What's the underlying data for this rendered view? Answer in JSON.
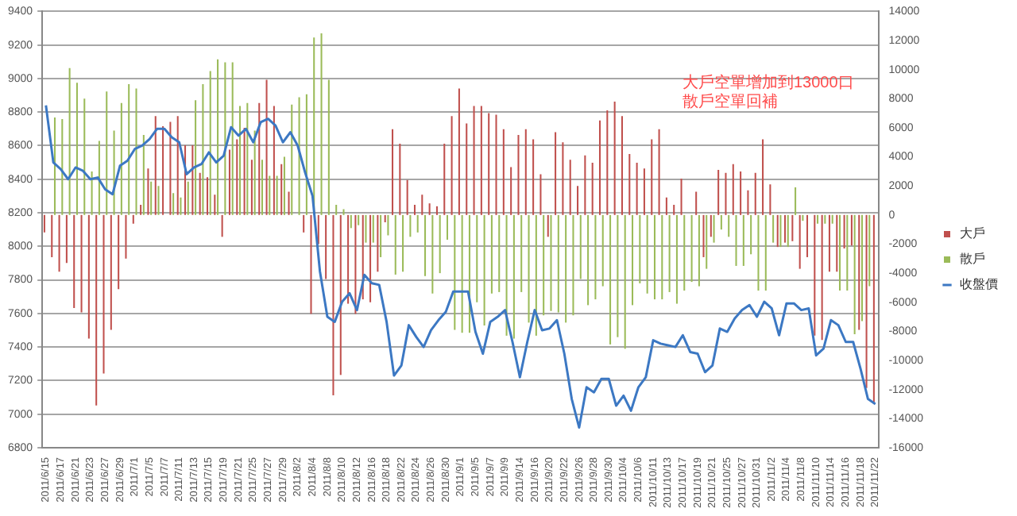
{
  "chart_data": {
    "type": "bar",
    "categories": [
      "2011/6/15",
      null,
      "2011/6/17",
      null,
      "2011/6/21",
      null,
      "2011/6/23",
      null,
      "2011/6/27",
      null,
      "2011/6/29",
      null,
      "2011/7/1",
      null,
      "2011/7/5",
      null,
      "2011/7/7",
      null,
      "2011/7/11",
      null,
      "2011/7/13",
      null,
      "2011/7/15",
      null,
      "2011/7/19",
      null,
      "2011/7/21",
      null,
      "2011/7/25",
      null,
      "2011/7/27",
      null,
      "2011/7/29",
      null,
      "2011/8/2",
      null,
      "2011/8/4",
      null,
      "2011/8/8",
      null,
      "2011/8/10",
      null,
      "2011/8/12",
      null,
      "2011/8/16",
      null,
      "2011/8/18",
      null,
      "2011/8/22",
      null,
      "2011/8/24",
      null,
      "2011/8/26",
      null,
      "2011/8/30",
      null,
      "2011/9/1",
      null,
      "2011/9/5",
      null,
      "2011/9/7",
      null,
      "2011/9/9",
      null,
      "2011/9/14",
      null,
      "2011/9/16",
      null,
      "2011/9/20",
      null,
      "2011/9/22",
      null,
      "2011/9/26",
      null,
      "2011/9/28",
      null,
      "2011/9/30",
      null,
      "2011/10/4",
      null,
      "2011/10/6",
      null,
      "2011/10/11",
      null,
      "2011/10/13",
      null,
      "2011/10/17",
      null,
      "2011/10/19",
      null,
      "2011/10/21",
      null,
      "2011/10/25",
      null,
      "2011/10/27",
      null,
      "2011/10/31",
      null,
      "2011/11/2",
      null,
      "2011/11/4",
      null,
      "2011/11/8",
      null,
      "2011/11/10",
      null,
      "2011/11/14",
      null,
      "2011/11/16",
      null,
      "2011/11/18",
      null,
      "2011/11/22"
    ],
    "series": [
      {
        "name": "大戶",
        "axis": "y2",
        "color": "#c0504d",
        "values": [
          -1200,
          -2900,
          -3900,
          -3300,
          -6400,
          -6700,
          -8500,
          -13100,
          -10900,
          -7900,
          -5100,
          -3000,
          -600,
          700,
          3200,
          6800,
          6100,
          6400,
          6800,
          4800,
          4800,
          2900,
          2600,
          1400,
          -1500,
          4500,
          5200,
          6000,
          3800,
          7700,
          9300,
          7500,
          3500,
          1600,
          0,
          -1200,
          -6800,
          -2000,
          -4400,
          -12400,
          -11000,
          -6100,
          -6800,
          -5800,
          -6000,
          -3900,
          -500,
          5900,
          4900,
          2400,
          700,
          1400,
          800,
          600,
          4900,
          6800,
          8700,
          6300,
          7500,
          7500,
          7000,
          6900,
          5900,
          3300,
          5500,
          5900,
          5200,
          2800,
          -1500,
          5700,
          5000,
          3800,
          2000,
          4100,
          3600,
          6500,
          7200,
          7800,
          6800,
          4200,
          3600,
          3200,
          5200,
          5900,
          1200,
          700,
          2500,
          null,
          1600,
          -2900,
          -1500,
          3100,
          2900,
          3500,
          3000,
          1700,
          2900,
          5200,
          2100,
          -2200,
          -1900,
          -1800,
          -3700,
          -2900,
          -8300,
          -8600,
          -3900,
          -3900,
          -2300,
          -2100,
          -7900,
          -11900,
          -13000
        ]
      },
      {
        "name": "散戶",
        "axis": "y2",
        "color": "#9bbb59",
        "values": [
          null,
          6700,
          6600,
          10100,
          9100,
          8000,
          3000,
          5100,
          8500,
          5800,
          7700,
          9000,
          8700,
          5500,
          2300,
          2000,
          null,
          1500,
          1200,
          2300,
          7900,
          9000,
          9900,
          10700,
          10500,
          10500,
          7500,
          7700,
          5800,
          3800,
          2700,
          2700,
          4000,
          7600,
          8100,
          8300,
          12200,
          12500,
          9300,
          700,
          400,
          -900,
          -700,
          -1900,
          -1900,
          -2900,
          -1400,
          -4100,
          -3900,
          -1500,
          -1200,
          -4200,
          -5400,
          -4000,
          -1700,
          -7900,
          -8100,
          -8100,
          -6000,
          -7600,
          -5400,
          -5300,
          -8300,
          -8500,
          -5300,
          -7400,
          -8300,
          -6900,
          -6600,
          -6700,
          -7400,
          -6900,
          -4400,
          -6200,
          -5800,
          -4900,
          -8900,
          -8400,
          -9200,
          -6200,
          -4700,
          -5400,
          -5800,
          -5800,
          -5300,
          -6100,
          -5200,
          -4600,
          -4900,
          -3700,
          -1900,
          -1000,
          -1500,
          -3500,
          -3500,
          -2700,
          -5200,
          -5200,
          -1900,
          -2200,
          -2200,
          1900,
          -400,
          null,
          -600,
          -600,
          -600,
          -5200,
          -5200,
          -8200,
          -7300,
          -4900,
          null
        ]
      },
      {
        "name": "收盤價",
        "type": "line",
        "color": "#3c78c3",
        "values": [
          8840,
          8500,
          8460,
          8400,
          8470,
          8450,
          8400,
          8410,
          8340,
          8310,
          8480,
          8510,
          8580,
          8600,
          8640,
          8700,
          8700,
          8650,
          8620,
          8430,
          8470,
          8490,
          8560,
          8500,
          8540,
          8710,
          8660,
          8700,
          8620,
          8740,
          8760,
          8720,
          8620,
          8680,
          8600,
          8440,
          8300,
          7850,
          7580,
          7550,
          7670,
          7720,
          7620,
          7830,
          7780,
          7770,
          7550,
          7230,
          7290,
          7530,
          7460,
          7400,
          7500,
          7560,
          7610,
          7730,
          7730,
          7730,
          7490,
          7360,
          7550,
          7580,
          7620,
          7430,
          7220,
          7430,
          7620,
          7500,
          7510,
          7560,
          7360,
          7090,
          6920,
          7160,
          7130,
          7210,
          7210,
          7050,
          7110,
          7020,
          7160,
          7220,
          7440,
          7420,
          7410,
          7400,
          7470,
          7370,
          7360,
          7250,
          7290,
          7510,
          7490,
          7570,
          7620,
          7650,
          7580,
          7670,
          7630,
          7470,
          7660,
          7660,
          7620,
          7630,
          7350,
          7390,
          7560,
          7530,
          7430,
          7430,
          7270,
          7090,
          7060
        ]
      }
    ],
    "ylim": [
      6800,
      9400
    ],
    "yticks": [
      6800,
      7000,
      7200,
      7400,
      7600,
      7800,
      8000,
      8200,
      8400,
      8600,
      8800,
      9000,
      9200,
      9400
    ],
    "y2lim": [
      -16000,
      14000
    ],
    "y2ticks": [
      -16000,
      -14000,
      -12000,
      -10000,
      -8000,
      -6000,
      -4000,
      -2000,
      0,
      2000,
      4000,
      6000,
      8000,
      10000,
      12000,
      14000
    ],
    "annotations": [
      "大戶空單增加到13000口",
      "散戶空單回補"
    ],
    "grid": "y",
    "legend": "right",
    "marker": "none"
  }
}
